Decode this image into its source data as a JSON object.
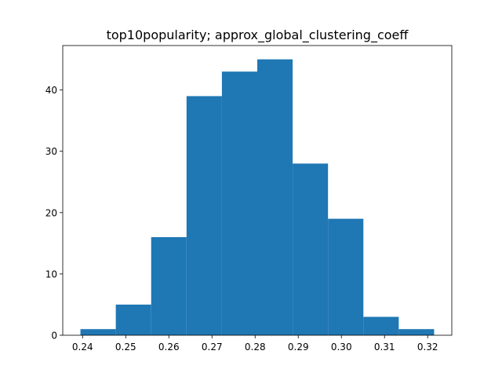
{
  "chart_data": {
    "type": "bar",
    "title": "top10popularity; approx_global_clustering_coeff",
    "xlabel": "",
    "ylabel": "",
    "bin_edges": [
      0.2395,
      0.2477,
      0.2559,
      0.2641,
      0.2723,
      0.2805,
      0.2887,
      0.2969,
      0.3051,
      0.3133,
      0.3215
    ],
    "values": [
      1,
      5,
      16,
      39,
      43,
      45,
      28,
      19,
      3,
      1
    ],
    "xlim": [
      0.2354,
      0.3256
    ],
    "ylim": [
      0,
      47.25
    ],
    "xticks": [
      0.24,
      0.25,
      0.26,
      0.27,
      0.28,
      0.29,
      0.3,
      0.31,
      0.32
    ],
    "xtick_labels": [
      "0.24",
      "0.25",
      "0.26",
      "0.27",
      "0.28",
      "0.29",
      "0.30",
      "0.31",
      "0.32"
    ],
    "yticks": [
      0,
      10,
      20,
      30,
      40
    ],
    "ytick_labels": [
      "0",
      "10",
      "20",
      "30",
      "40"
    ],
    "grid": false,
    "bar_color": "#1f77b4"
  }
}
